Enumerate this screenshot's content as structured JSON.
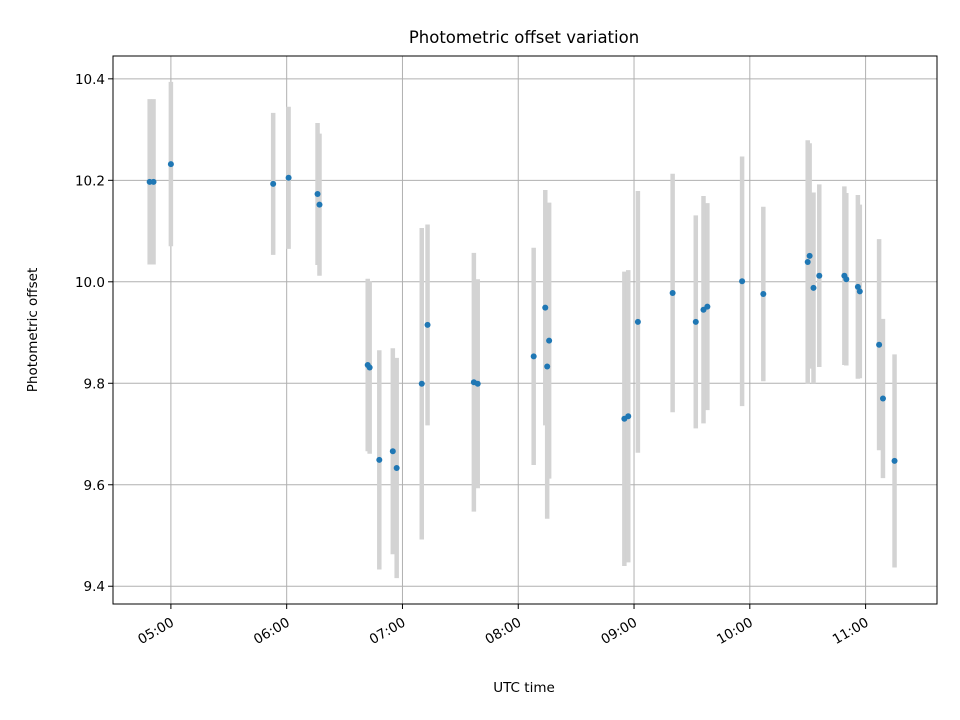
{
  "chart_data": {
    "type": "scatter",
    "title": "Photometric offset variation",
    "xlabel": "UTC time",
    "ylabel": "Photometric offset",
    "x_unit": "UTC time (HH:MM)",
    "xlim": [
      "04:30",
      "11:37"
    ],
    "ylim": [
      9.365,
      10.445
    ],
    "x_ticks": [
      "05:00",
      "06:00",
      "07:00",
      "08:00",
      "09:00",
      "10:00",
      "11:00"
    ],
    "y_ticks": [
      9.4,
      9.6,
      9.8,
      10.0,
      10.2,
      10.4
    ],
    "y_tick_labels": [
      "9.4",
      "9.6",
      "9.8",
      "10.0",
      "10.2",
      "10.4"
    ],
    "grid": true,
    "marker_color": "#1f77b4",
    "errorbar_color": "#d3d3d3",
    "points": [
      {
        "x": "04:49",
        "y": 10.197,
        "err": 0.163
      },
      {
        "x": "04:51",
        "y": 10.197,
        "err": 0.163
      },
      {
        "x": "05:00",
        "y": 10.232,
        "err": 0.162
      },
      {
        "x": "05:53",
        "y": 10.193,
        "err": 0.14
      },
      {
        "x": "06:01",
        "y": 10.205,
        "err": 0.14
      },
      {
        "x": "06:16",
        "y": 10.173,
        "err": 0.14
      },
      {
        "x": "06:17",
        "y": 10.152,
        "err": 0.14
      },
      {
        "x": "06:42",
        "y": 9.836,
        "err": 0.17
      },
      {
        "x": "06:43",
        "y": 9.831,
        "err": 0.17
      },
      {
        "x": "06:48",
        "y": 9.649,
        "err": 0.216
      },
      {
        "x": "06:55",
        "y": 9.666,
        "err": 0.203
      },
      {
        "x": "06:57",
        "y": 9.633,
        "err": 0.217
      },
      {
        "x": "07:10",
        "y": 9.799,
        "err": 0.307
      },
      {
        "x": "07:13",
        "y": 9.915,
        "err": 0.198
      },
      {
        "x": "07:37",
        "y": 9.802,
        "err": 0.255
      },
      {
        "x": "07:39",
        "y": 9.799,
        "err": 0.206
      },
      {
        "x": "08:08",
        "y": 9.853,
        "err": 0.214
      },
      {
        "x": "08:14",
        "y": 9.949,
        "err": 0.232
      },
      {
        "x": "08:15",
        "y": 9.833,
        "err": 0.3
      },
      {
        "x": "08:16",
        "y": 9.884,
        "err": 0.272
      },
      {
        "x": "08:55",
        "y": 9.73,
        "err": 0.29
      },
      {
        "x": "08:57",
        "y": 9.735,
        "err": 0.288
      },
      {
        "x": "09:02",
        "y": 9.921,
        "err": 0.258
      },
      {
        "x": "09:20",
        "y": 9.978,
        "err": 0.235
      },
      {
        "x": "09:32",
        "y": 9.921,
        "err": 0.21
      },
      {
        "x": "09:36",
        "y": 9.945,
        "err": 0.224
      },
      {
        "x": "09:38",
        "y": 9.951,
        "err": 0.204
      },
      {
        "x": "09:56",
        "y": 10.001,
        "err": 0.246
      },
      {
        "x": "10:07",
        "y": 9.976,
        "err": 0.172
      },
      {
        "x": "10:30",
        "y": 10.039,
        "err": 0.24
      },
      {
        "x": "10:31",
        "y": 10.051,
        "err": 0.222
      },
      {
        "x": "10:33",
        "y": 9.988,
        "err": 0.188
      },
      {
        "x": "10:36",
        "y": 10.012,
        "err": 0.18
      },
      {
        "x": "10:49",
        "y": 10.012,
        "err": 0.176
      },
      {
        "x": "10:50",
        "y": 10.005,
        "err": 0.17
      },
      {
        "x": "10:56",
        "y": 9.99,
        "err": 0.181
      },
      {
        "x": "10:57",
        "y": 9.981,
        "err": 0.171
      },
      {
        "x": "11:07",
        "y": 9.876,
        "err": 0.208
      },
      {
        "x": "11:09",
        "y": 9.77,
        "err": 0.157
      },
      {
        "x": "11:15",
        "y": 9.647,
        "err": 0.21
      }
    ]
  }
}
